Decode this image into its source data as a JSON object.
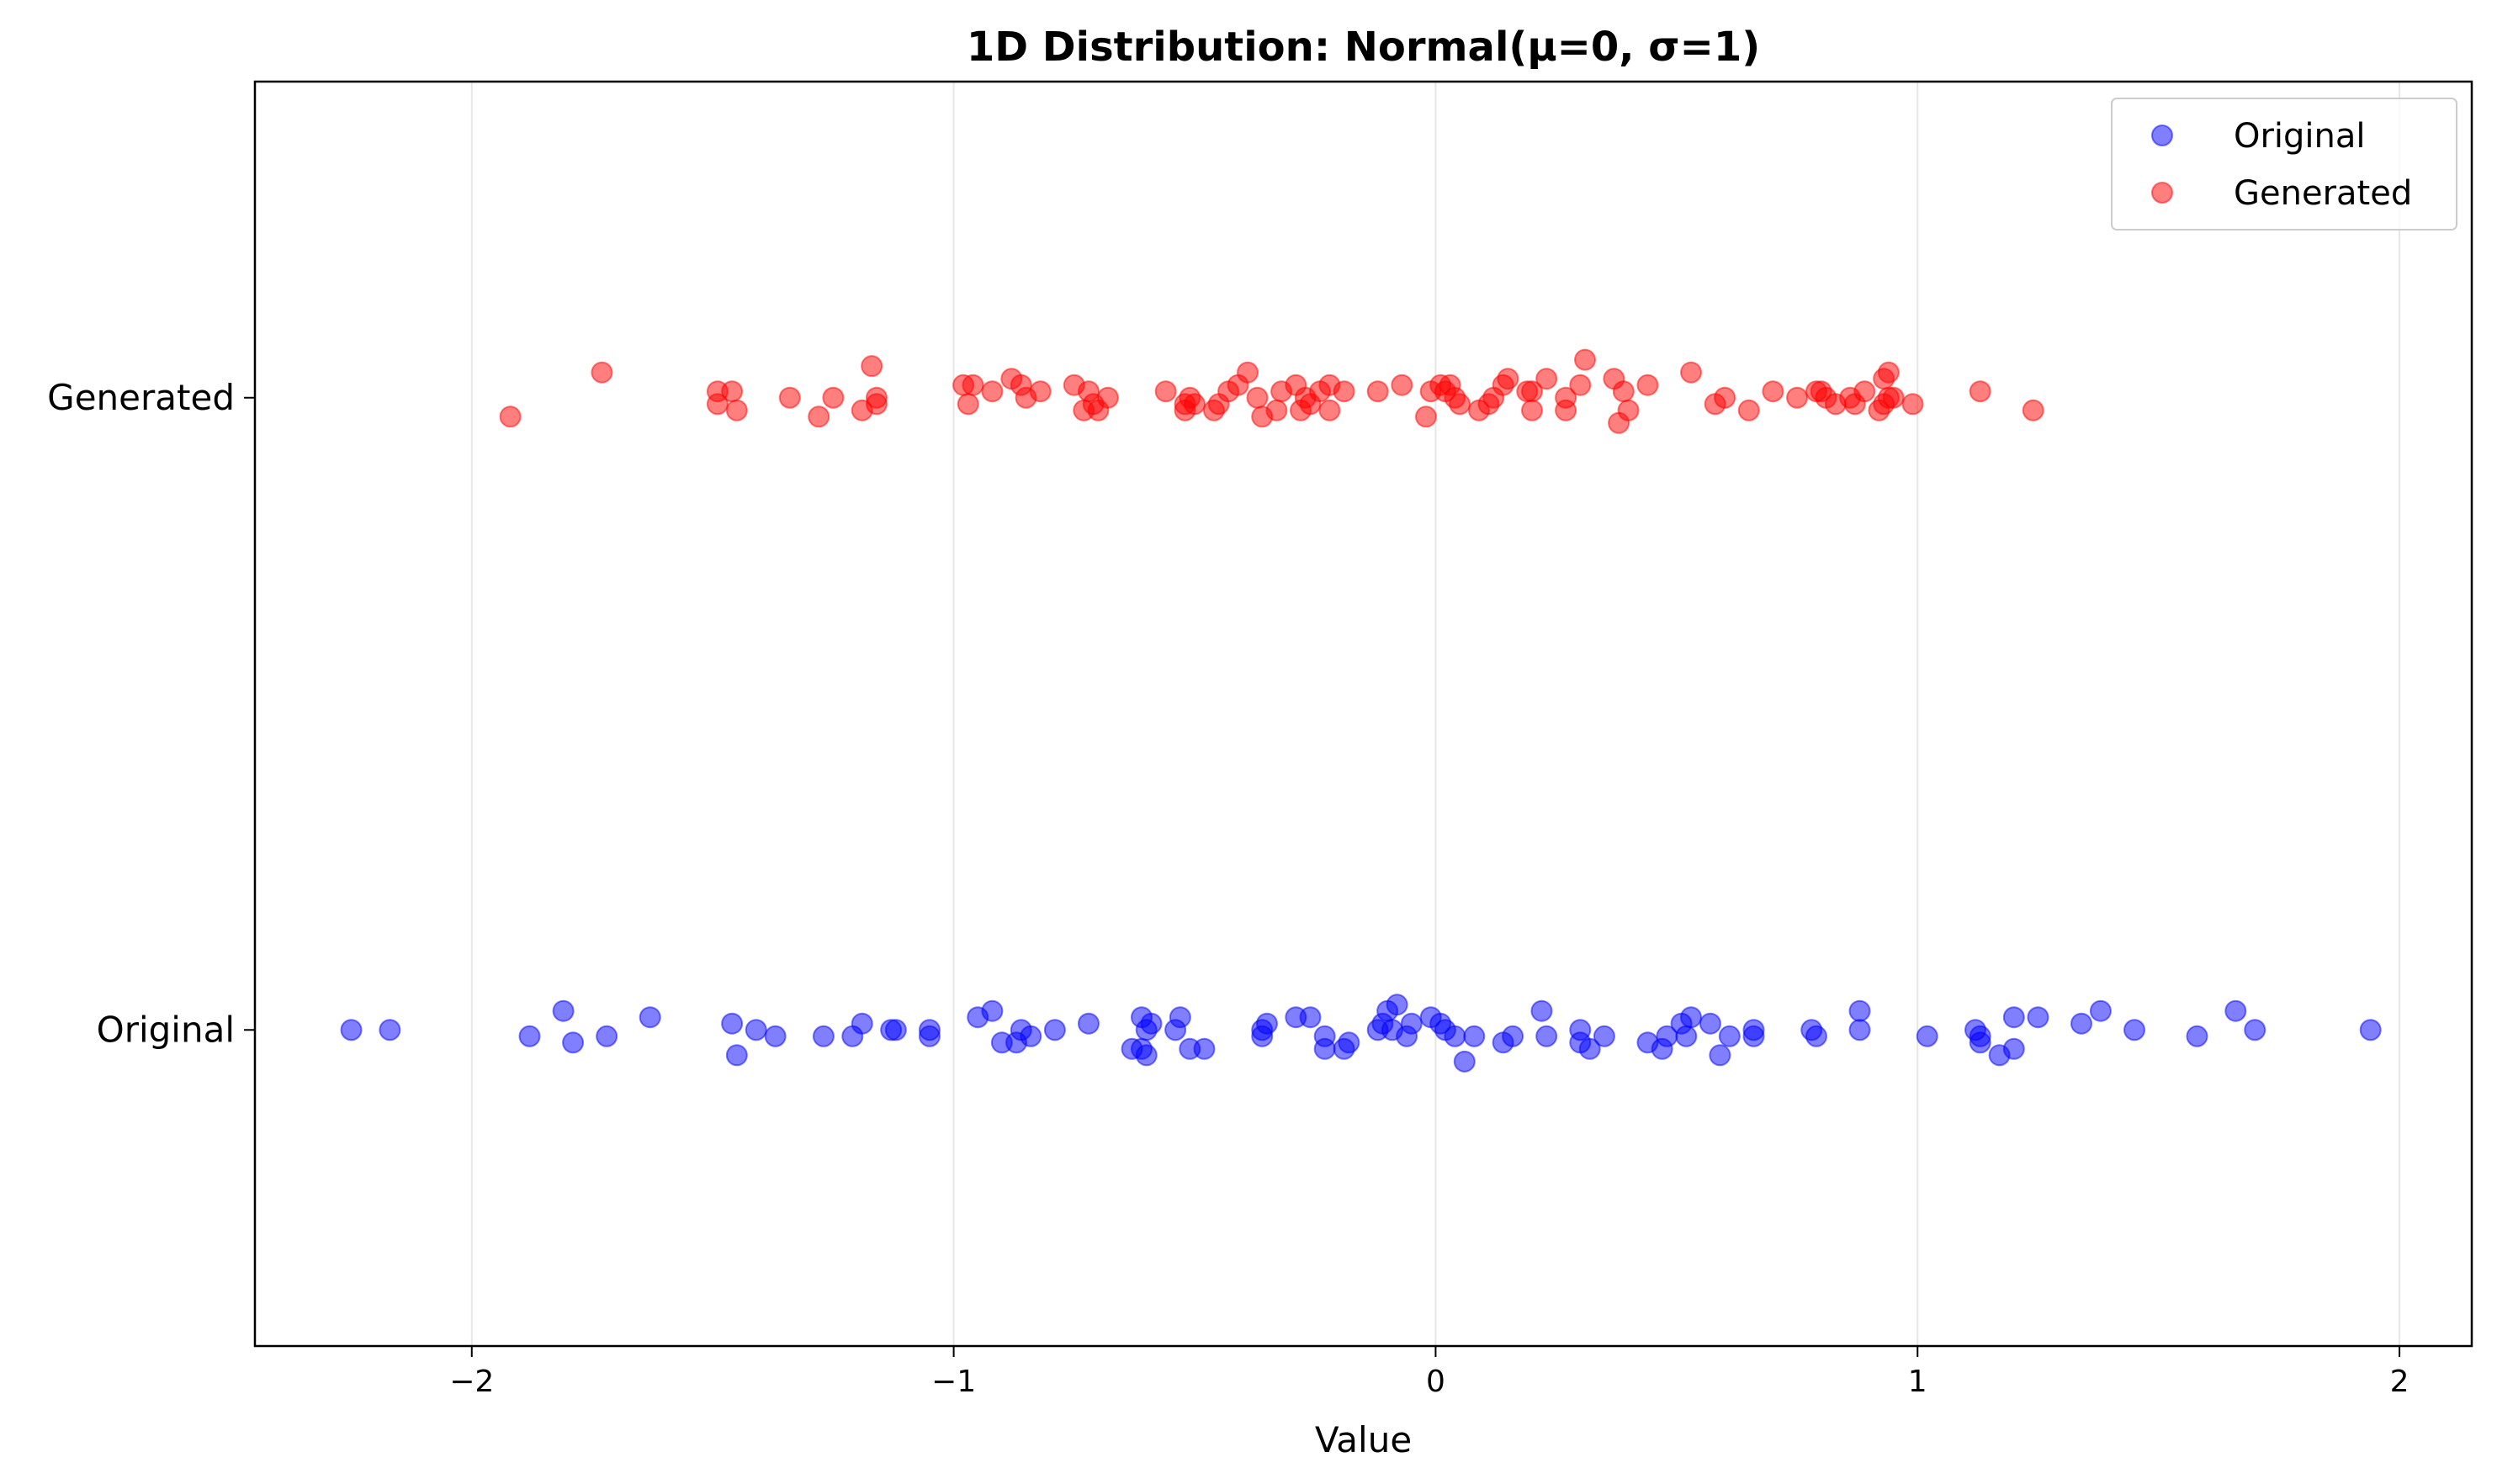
{
  "chart_data": {
    "type": "scatter",
    "title": "1D Distribution: Normal(μ=0, σ=1)",
    "xlabel": "Value",
    "ylabel": "",
    "xlim": [
      -2.45,
      2.15
    ],
    "ylim": [
      -0.5,
      1.5
    ],
    "xticks": [
      -2,
      -1,
      0,
      1,
      2
    ],
    "xtick_labels": [
      "−2",
      "−1",
      "0",
      "1",
      "2"
    ],
    "yticks": [
      0,
      1
    ],
    "ytick_labels": [
      "Original",
      "Generated"
    ],
    "grid": "vertical",
    "legend_position": "top-right",
    "series": [
      {
        "name": "Original",
        "color": "#0000ff",
        "points": [
          [
            -2.25,
            0.0
          ],
          [
            -2.17,
            0.0
          ],
          [
            -1.88,
            -0.01
          ],
          [
            -1.81,
            0.03
          ],
          [
            -1.79,
            -0.02
          ],
          [
            -1.72,
            -0.01
          ],
          [
            -1.63,
            0.02
          ],
          [
            -1.46,
            0.01
          ],
          [
            -1.45,
            -0.04
          ],
          [
            -1.41,
            0.0
          ],
          [
            -1.37,
            -0.01
          ],
          [
            -1.27,
            -0.01
          ],
          [
            -1.21,
            -0.01
          ],
          [
            -1.19,
            0.01
          ],
          [
            -1.13,
            0.0
          ],
          [
            -1.12,
            0.0
          ],
          [
            -1.05,
            -0.01
          ],
          [
            -1.05,
            0.0
          ],
          [
            -0.95,
            0.02
          ],
          [
            -0.92,
            0.03
          ],
          [
            -0.9,
            -0.02
          ],
          [
            -0.87,
            -0.02
          ],
          [
            -0.86,
            0.0
          ],
          [
            -0.84,
            -0.01
          ],
          [
            -0.79,
            0.0
          ],
          [
            -0.72,
            0.01
          ],
          [
            -0.63,
            -0.03
          ],
          [
            -0.61,
            0.02
          ],
          [
            -0.61,
            -0.03
          ],
          [
            -0.6,
            0.0
          ],
          [
            -0.6,
            -0.04
          ],
          [
            -0.59,
            0.01
          ],
          [
            -0.54,
            0.0
          ],
          [
            -0.53,
            0.02
          ],
          [
            -0.51,
            -0.03
          ],
          [
            -0.48,
            -0.03
          ],
          [
            -0.36,
            0.0
          ],
          [
            -0.36,
            -0.01
          ],
          [
            -0.35,
            0.01
          ],
          [
            -0.29,
            0.02
          ],
          [
            -0.26,
            0.02
          ],
          [
            -0.23,
            -0.01
          ],
          [
            -0.23,
            -0.03
          ],
          [
            -0.19,
            -0.03
          ],
          [
            -0.18,
            -0.02
          ],
          [
            -0.12,
            0.0
          ],
          [
            -0.11,
            0.01
          ],
          [
            -0.1,
            0.03
          ],
          [
            -0.09,
            0.0
          ],
          [
            -0.08,
            0.04
          ],
          [
            -0.06,
            -0.01
          ],
          [
            -0.05,
            0.01
          ],
          [
            -0.01,
            0.02
          ],
          [
            0.01,
            0.01
          ],
          [
            0.02,
            0.0
          ],
          [
            0.04,
            -0.01
          ],
          [
            0.06,
            -0.05
          ],
          [
            0.08,
            -0.01
          ],
          [
            0.14,
            -0.02
          ],
          [
            0.16,
            -0.01
          ],
          [
            0.22,
            0.03
          ],
          [
            0.23,
            -0.01
          ],
          [
            0.3,
            0.0
          ],
          [
            0.3,
            -0.02
          ],
          [
            0.32,
            -0.03
          ],
          [
            0.35,
            -0.01
          ],
          [
            0.44,
            -0.02
          ],
          [
            0.47,
            -0.03
          ],
          [
            0.48,
            -0.01
          ],
          [
            0.51,
            0.01
          ],
          [
            0.52,
            -0.01
          ],
          [
            0.53,
            0.02
          ],
          [
            0.57,
            0.01
          ],
          [
            0.59,
            -0.04
          ],
          [
            0.61,
            -0.01
          ],
          [
            0.66,
            0.0
          ],
          [
            0.66,
            -0.01
          ],
          [
            0.78,
            0.0
          ],
          [
            0.79,
            -0.01
          ],
          [
            0.88,
            0.0
          ],
          [
            0.88,
            0.03
          ],
          [
            1.02,
            -0.01
          ],
          [
            1.12,
            0.0
          ],
          [
            1.13,
            -0.01
          ],
          [
            1.13,
            -0.02
          ],
          [
            1.17,
            -0.04
          ],
          [
            1.2,
            -0.03
          ],
          [
            1.2,
            0.02
          ],
          [
            1.25,
            0.02
          ],
          [
            1.34,
            0.01
          ],
          [
            1.38,
            0.03
          ],
          [
            1.45,
            0.0
          ],
          [
            1.58,
            -0.01
          ],
          [
            1.66,
            0.03
          ],
          [
            1.7,
            0.0
          ],
          [
            1.94,
            0.0
          ]
        ]
      },
      {
        "name": "Generated",
        "color": "#ff0000",
        "points": [
          [
            -1.92,
            0.97
          ],
          [
            -1.73,
            1.04
          ],
          [
            -1.49,
            1.01
          ],
          [
            -1.49,
            0.99
          ],
          [
            -1.46,
            1.01
          ],
          [
            -1.45,
            0.98
          ],
          [
            -1.34,
            1.0
          ],
          [
            -1.28,
            0.97
          ],
          [
            -1.25,
            1.0
          ],
          [
            -1.19,
            0.98
          ],
          [
            -1.17,
            1.05
          ],
          [
            -1.16,
            1.0
          ],
          [
            -1.16,
            0.99
          ],
          [
            -0.98,
            1.02
          ],
          [
            -0.97,
            0.99
          ],
          [
            -0.96,
            1.02
          ],
          [
            -0.92,
            1.01
          ],
          [
            -0.88,
            1.03
          ],
          [
            -0.86,
            1.02
          ],
          [
            -0.85,
            1.0
          ],
          [
            -0.82,
            1.01
          ],
          [
            -0.75,
            1.02
          ],
          [
            -0.73,
            0.98
          ],
          [
            -0.72,
            1.01
          ],
          [
            -0.71,
            0.99
          ],
          [
            -0.7,
            0.98
          ],
          [
            -0.68,
            1.0
          ],
          [
            -0.56,
            1.01
          ],
          [
            -0.52,
            0.99
          ],
          [
            -0.52,
            0.98
          ],
          [
            -0.51,
            1.0
          ],
          [
            -0.5,
            0.99
          ],
          [
            -0.46,
            0.98
          ],
          [
            -0.45,
            0.99
          ],
          [
            -0.43,
            1.01
          ],
          [
            -0.41,
            1.02
          ],
          [
            -0.39,
            1.04
          ],
          [
            -0.37,
            1.0
          ],
          [
            -0.36,
            0.97
          ],
          [
            -0.33,
            0.98
          ],
          [
            -0.32,
            1.01
          ],
          [
            -0.29,
            1.02
          ],
          [
            -0.28,
            0.98
          ],
          [
            -0.27,
            1.0
          ],
          [
            -0.26,
            0.99
          ],
          [
            -0.24,
            1.01
          ],
          [
            -0.22,
            1.02
          ],
          [
            -0.22,
            0.98
          ],
          [
            -0.19,
            1.01
          ],
          [
            -0.12,
            1.01
          ],
          [
            -0.07,
            1.02
          ],
          [
            -0.02,
            0.97
          ],
          [
            -0.01,
            1.01
          ],
          [
            0.01,
            1.02
          ],
          [
            0.02,
            1.01
          ],
          [
            0.03,
            1.02
          ],
          [
            0.04,
            1.0
          ],
          [
            0.05,
            0.99
          ],
          [
            0.09,
            0.98
          ],
          [
            0.11,
            0.99
          ],
          [
            0.12,
            1.0
          ],
          [
            0.14,
            1.02
          ],
          [
            0.15,
            1.03
          ],
          [
            0.19,
            1.01
          ],
          [
            0.2,
            0.98
          ],
          [
            0.2,
            1.01
          ],
          [
            0.23,
            1.03
          ],
          [
            0.27,
            1.0
          ],
          [
            0.27,
            0.98
          ],
          [
            0.3,
            1.02
          ],
          [
            0.31,
            1.06
          ],
          [
            0.37,
            1.03
          ],
          [
            0.38,
            0.96
          ],
          [
            0.39,
            1.01
          ],
          [
            0.4,
            0.98
          ],
          [
            0.44,
            1.02
          ],
          [
            0.53,
            1.04
          ],
          [
            0.58,
            0.99
          ],
          [
            0.6,
            1.0
          ],
          [
            0.65,
            0.98
          ],
          [
            0.7,
            1.01
          ],
          [
            0.75,
            1.0
          ],
          [
            0.79,
            1.01
          ],
          [
            0.8,
            1.01
          ],
          [
            0.81,
            1.0
          ],
          [
            0.83,
            0.99
          ],
          [
            0.86,
            1.0
          ],
          [
            0.87,
            0.99
          ],
          [
            0.89,
            1.01
          ],
          [
            0.92,
            0.98
          ],
          [
            0.93,
            1.03
          ],
          [
            0.93,
            0.99
          ],
          [
            0.94,
            1.0
          ],
          [
            0.94,
            1.04
          ],
          [
            0.95,
            1.0
          ],
          [
            0.99,
            0.99
          ],
          [
            1.13,
            1.01
          ],
          [
            1.24,
            0.98
          ]
        ]
      }
    ]
  }
}
